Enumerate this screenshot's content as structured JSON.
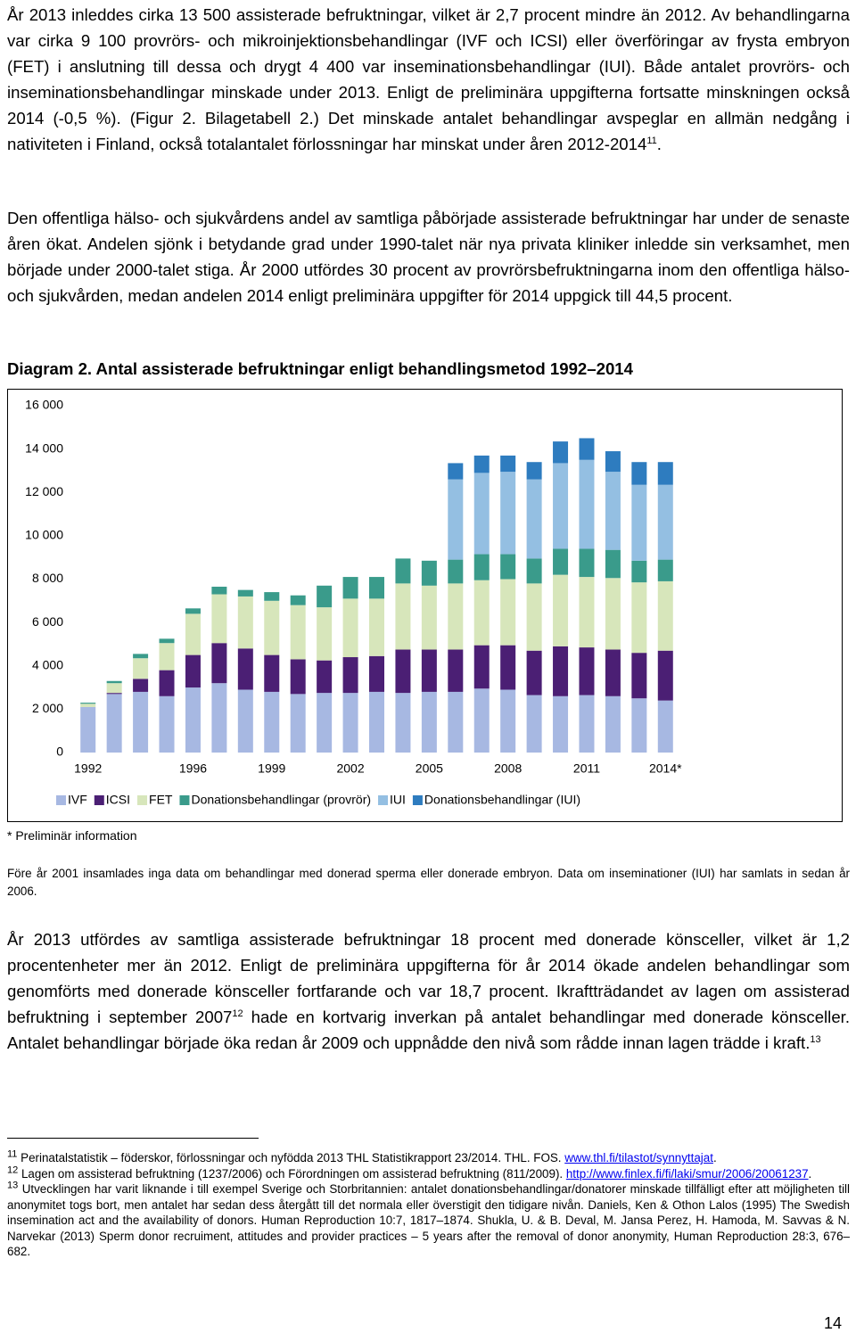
{
  "paragraphs": [
    [
      {
        "text": "År 2013 inleddes cirka 13 500 assisterade befruktningar, vilket är 2,7 procent mindre än 2012. Av behandlingarna var cirka 9 100 provrörs- och mikroinjektionsbehandlingar (IVF och ICSI) eller överföringar av frysta embryon (FET) i anslutning till dessa och drygt 4 400 var inseminationsbehandlingar (IUI). Både antalet provrörs- och inseminationsbehandlingar minskade under 2013. Enligt de preliminära uppgifterna fortsatte minskningen också 2014 (-0,5 %). (Figur 2. Bilagetabell 2.) Det minskade antalet behandlingar avspeglar en allmän nedgång i nativiteten i Finland, också totalantalet förlossningar har minskat under åren 2012-2014"
      },
      {
        "sup": "11"
      },
      {
        "text": "."
      }
    ],
    [
      {
        "text": "Den offentliga hälso- och sjukvårdens andel av samtliga påbörjade assisterade befruktningar har under de senaste åren ökat. Andelen sjönk i betydande grad under 1990-talet när nya privata kliniker inledde sin verksamhet, men började under 2000-talet stiga. År 2000 utfördes 30 procent av provrörsbefruktningarna inom den offentliga hälso- och sjukvården, medan andelen 2014 enligt preliminära uppgifter för 2014 uppgick till 44,5 procent."
      }
    ]
  ],
  "chart_heading": "Diagram 2. Antal assisterade befruktningar enligt behandlingsmetod 1992–2014",
  "chart_data": {
    "type": "stacked-bar",
    "categories": [
      "1992",
      null,
      null,
      null,
      "1996",
      null,
      null,
      "1999",
      null,
      null,
      "2002",
      null,
      null,
      "2005",
      null,
      null,
      "2008",
      null,
      null,
      "2011",
      null,
      null,
      "2014*"
    ],
    "series": [
      {
        "name": "IVF",
        "color": "#a7b8e2",
        "values": [
          2100,
          2700,
          2800,
          2600,
          3000,
          3200,
          2900,
          2800,
          2700,
          2750,
          2750,
          2800,
          2750,
          2800,
          2800,
          2950,
          2900,
          2650,
          2600,
          2650,
          2600,
          2500,
          2400
        ]
      },
      {
        "name": "ICSI",
        "color": "#4b1f74",
        "values": [
          0,
          50,
          600,
          1200,
          1500,
          1850,
          1900,
          1700,
          1600,
          1500,
          1650,
          1650,
          2000,
          1950,
          1950,
          2000,
          2050,
          2050,
          2300,
          2200,
          2150,
          2100,
          2300
        ]
      },
      {
        "name": "FET",
        "color": "#d7e6bb",
        "values": [
          150,
          450,
          950,
          1250,
          1900,
          2250,
          2400,
          2500,
          2500,
          2450,
          2700,
          2650,
          3050,
          2950,
          3050,
          3000,
          3050,
          3100,
          3300,
          3250,
          3300,
          3250,
          3200
        ]
      },
      {
        "name": "Donationsbehandlingar (provrör)",
        "color": "#3a9b8b",
        "values": [
          50,
          100,
          200,
          200,
          250,
          350,
          300,
          400,
          450,
          1000,
          1000,
          1000,
          1150,
          1150,
          1100,
          1200,
          1150,
          1150,
          1200,
          1300,
          1300,
          1000,
          1000
        ]
      },
      {
        "name": "IUI",
        "color": "#94bfe2",
        "values": [
          null,
          null,
          null,
          null,
          null,
          null,
          null,
          null,
          null,
          null,
          null,
          null,
          null,
          null,
          3700,
          3750,
          3800,
          3650,
          3950,
          4100,
          3600,
          3500,
          3450
        ]
      },
      {
        "name": "Donationsbehandlingar (IUI)",
        "color": "#2e7cbf",
        "values": [
          null,
          null,
          null,
          null,
          null,
          null,
          null,
          null,
          null,
          null,
          null,
          null,
          null,
          null,
          750,
          800,
          750,
          800,
          1000,
          1000,
          950,
          1050,
          1050
        ]
      }
    ],
    "ylim": [
      0,
      16000
    ],
    "yticks": [
      0,
      {
        "value": 2000,
        "label": "2 000"
      },
      {
        "value": 4000,
        "label": "4 000"
      },
      {
        "value": 6000,
        "label": "6 000"
      },
      {
        "value": 8000,
        "label": "8 000"
      },
      {
        "value": 10000,
        "label": "10 000"
      },
      {
        "value": 12000,
        "label": "12 000"
      },
      {
        "value": 14000,
        "label": "14 000"
      },
      {
        "value": 16000,
        "label": "16 000"
      }
    ],
    "grid": false
  },
  "chart_note": "* Preliminär information",
  "chart_source": "Före år 2001 insamlades inga data om behandlingar med donerad sperma eller donerade embryon. Data om inseminationer (IUI) har samlats in sedan år 2006.",
  "paragraph_after": [
    {
      "text": "År 2013 utfördes av samtliga assisterade befruktningar 18 procent med donerade könsceller, vilket är 1,2 procentenheter mer än 2012. Enligt de preliminära uppgifterna för år 2014 ökade andelen behandlingar som genomförts med donerade könsceller fortfarande och var 18,7 procent. Ikraftträdandet av lagen om assisterad befruktning i september 2007"
    },
    {
      "sup": "12"
    },
    {
      "text": " hade en kortvarig inverkan på antalet behandlingar med donerade könsceller. Antalet behandlingar började öka redan år 2009 och uppnådde den nivå som rådde innan lagen trädde i kraft."
    },
    {
      "sup": "13"
    }
  ],
  "footnotes": [
    [
      {
        "sup": "11"
      },
      {
        "text": " Perinatalstatistik – föderskor, förlossningar och nyfödda 2013 THL Statistikrapport 23/2014. THL. FOS. "
      },
      {
        "link": "www.thl.fi/tilastot/synnyttajat"
      },
      {
        "text": "."
      }
    ],
    [
      {
        "sup": "12"
      },
      {
        "text": " Lagen om assisterad befruktning (1237/2006) och Förordningen om assisterad befruktning (811/2009). "
      },
      {
        "link": "http://www.finlex.fi/fi/laki/smur/2006/20061237"
      },
      {
        "text": "."
      }
    ],
    [
      {
        "sup": "13"
      },
      {
        "text": " Utvecklingen har varit liknande i till exempel Sverige och Storbritannien: antalet donationsbehandlingar/donatorer minskade tillfälligt efter att möjligheten till anonymitet togs bort, men antalet har sedan dess återgått till det normala eller överstigit den tidigare nivån. Daniels, Ken & Othon Lalos (1995) The Swedish insemination act and the availability of donors. Human Reproduction 10:7, 1817–1874. Shukla, U. & B. Deval, M. Jansa Perez, H. Hamoda, M. Savvas & N. Narvekar (2013) Sperm donor recruiment, attitudes and provider practices – 5 years after the removal of donor anonymity, Human Reproduction 28:3, 676–682."
      }
    ]
  ],
  "page_number": "14"
}
